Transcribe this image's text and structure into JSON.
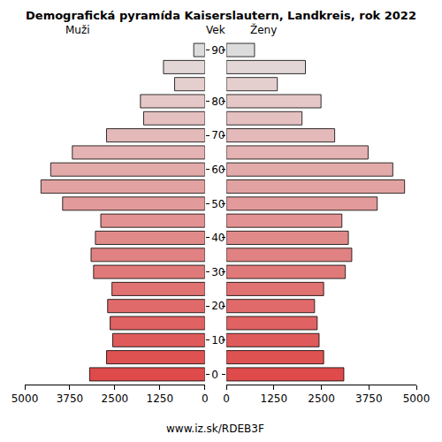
{
  "chart_data": {
    "type": "bar",
    "orientation": "horizontal",
    "title": "Demografická pyramída Kaiserslautern, Landkreis, rok 2022",
    "y_label": "Vek",
    "caption": "www.iz.sk/RDEB3F",
    "categories": [
      "0",
      null,
      "10",
      null,
      "20",
      null,
      "30",
      null,
      "40",
      null,
      "50",
      null,
      "60",
      null,
      "70",
      null,
      "80",
      null,
      null,
      "90"
    ],
    "series": [
      {
        "name": "Muži",
        "values": [
          3200,
          2730,
          2560,
          2630,
          2700,
          2580,
          3090,
          3160,
          3040,
          2890,
          3950,
          4550,
          4280,
          3680,
          2730,
          1700,
          1790,
          840,
          1150,
          310
        ]
      },
      {
        "name": "Ženy",
        "values": [
          3090,
          2560,
          2440,
          2390,
          2320,
          2560,
          3130,
          3300,
          3210,
          3040,
          3970,
          4690,
          4380,
          3730,
          2850,
          1990,
          2490,
          1340,
          2080,
          740
        ]
      }
    ],
    "colors": [
      "#df4a4a",
      "#df5252",
      "#df5a5a",
      "#e06262",
      "#e06a6a",
      "#e07272",
      "#e07a7a",
      "#e18282",
      "#e18a8a",
      "#e29292",
      "#e29a9a",
      "#e3a2a2",
      "#e3aaaa",
      "#e4b2b2",
      "#e4b9b9",
      "#e5c0c0",
      "#e5c7c7",
      "#e4cece",
      "#e2d6d6",
      "#dcdcdc"
    ],
    "xlim": [
      0,
      5000
    ],
    "xticks": [
      0,
      1250,
      2500,
      3750,
      5000
    ],
    "grid": false
  }
}
